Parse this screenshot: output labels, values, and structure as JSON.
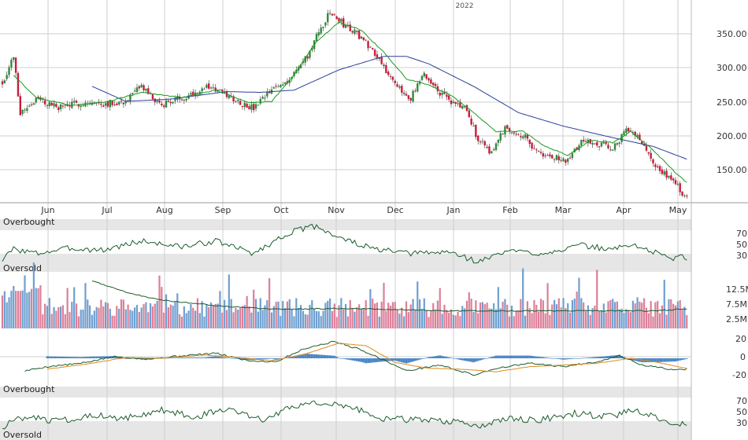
{
  "chart_data": [
    {
      "type": "candlestick",
      "panel": "price",
      "year_label": "2022",
      "months": [
        "Jun",
        "Jul",
        "Aug",
        "Sep",
        "Oct",
        "Nov",
        "Dec",
        "Jan",
        "Feb",
        "Mar",
        "Apr",
        "May"
      ],
      "yticks": [
        "350.00",
        "300.00",
        "250.00",
        "200.00",
        "150.00"
      ],
      "ylim": [
        105,
        375
      ],
      "close_keypoints": [
        [
          0,
          265
        ],
        [
          5,
          300
        ],
        [
          8,
          225
        ],
        [
          15,
          243
        ],
        [
          25,
          232
        ],
        [
          35,
          238
        ],
        [
          45,
          237
        ],
        [
          55,
          240
        ],
        [
          62,
          260
        ],
        [
          70,
          235
        ],
        [
          80,
          245
        ],
        [
          92,
          260
        ],
        [
          100,
          248
        ],
        [
          112,
          230
        ],
        [
          120,
          255
        ],
        [
          128,
          270
        ],
        [
          136,
          300
        ],
        [
          142,
          338
        ],
        [
          146,
          358
        ],
        [
          152,
          343
        ],
        [
          160,
          325
        ],
        [
          168,
          298
        ],
        [
          175,
          260
        ],
        [
          182,
          245
        ],
        [
          188,
          275
        ],
        [
          194,
          255
        ],
        [
          200,
          238
        ],
        [
          206,
          232
        ],
        [
          212,
          190
        ],
        [
          218,
          172
        ],
        [
          224,
          205
        ],
        [
          232,
          195
        ],
        [
          240,
          168
        ],
        [
          246,
          165
        ],
        [
          252,
          160
        ],
        [
          258,
          188
        ],
        [
          264,
          185
        ],
        [
          272,
          178
        ],
        [
          278,
          200
        ],
        [
          283,
          198
        ],
        [
          290,
          157
        ],
        [
          296,
          140
        ],
        [
          300,
          130
        ],
        [
          305,
          110
        ]
      ],
      "sma_short_keypoints": [
        [
          5,
          275
        ],
        [
          15,
          245
        ],
        [
          30,
          235
        ],
        [
          45,
          238
        ],
        [
          62,
          252
        ],
        [
          80,
          245
        ],
        [
          95,
          255
        ],
        [
          110,
          238
        ],
        [
          120,
          240
        ],
        [
          130,
          275
        ],
        [
          140,
          320
        ],
        [
          150,
          345
        ],
        [
          160,
          335
        ],
        [
          170,
          305
        ],
        [
          180,
          270
        ],
        [
          190,
          262
        ],
        [
          200,
          248
        ],
        [
          210,
          225
        ],
        [
          220,
          200
        ],
        [
          232,
          200
        ],
        [
          242,
          180
        ],
        [
          252,
          168
        ],
        [
          262,
          188
        ],
        [
          272,
          185
        ],
        [
          280,
          200
        ],
        [
          290,
          175
        ],
        [
          300,
          145
        ],
        [
          305,
          132
        ]
      ],
      "sma_long_keypoints": [
        [
          40,
          260
        ],
        [
          55,
          240
        ],
        [
          75,
          243
        ],
        [
          100,
          253
        ],
        [
          115,
          252
        ],
        [
          130,
          255
        ],
        [
          150,
          282
        ],
        [
          170,
          300
        ],
        [
          180,
          300
        ],
        [
          190,
          290
        ],
        [
          210,
          260
        ],
        [
          230,
          225
        ],
        [
          250,
          207
        ],
        [
          270,
          193
        ],
        [
          290,
          180
        ],
        [
          305,
          163
        ]
      ]
    },
    {
      "type": "line",
      "panel": "rsi",
      "label_top": "Overbought",
      "label_bottom": "Oversold",
      "yticks": [
        "70",
        "50",
        "30"
      ],
      "bands": [
        70,
        30
      ],
      "ylim": [
        10,
        90
      ],
      "keypoints": [
        [
          0,
          28
        ],
        [
          5,
          45
        ],
        [
          15,
          38
        ],
        [
          30,
          46
        ],
        [
          45,
          43
        ],
        [
          62,
          57
        ],
        [
          80,
          48
        ],
        [
          95,
          57
        ],
        [
          112,
          38
        ],
        [
          128,
          70
        ],
        [
          140,
          80
        ],
        [
          150,
          62
        ],
        [
          165,
          45
        ],
        [
          180,
          38
        ],
        [
          200,
          40
        ],
        [
          212,
          25
        ],
        [
          225,
          42
        ],
        [
          240,
          38
        ],
        [
          258,
          50
        ],
        [
          272,
          44
        ],
        [
          280,
          52
        ],
        [
          292,
          38
        ],
        [
          300,
          30
        ],
        [
          303,
          35
        ],
        [
          305,
          30
        ]
      ]
    },
    {
      "type": "bar",
      "panel": "volume",
      "yticks": [
        "12.5M",
        "7.5M",
        "2.5M"
      ],
      "ylim": [
        0,
        14
      ],
      "avg_keypoints": [
        [
          40,
          12.5
        ],
        [
          55,
          9.5
        ],
        [
          70,
          7.5
        ],
        [
          95,
          6
        ],
        [
          120,
          5
        ],
        [
          150,
          5.2
        ],
        [
          175,
          5.0
        ],
        [
          200,
          4.6
        ],
        [
          230,
          4.6
        ],
        [
          260,
          4.6
        ],
        [
          290,
          4.6
        ],
        [
          305,
          5.1
        ]
      ]
    },
    {
      "type": "line",
      "panel": "macd",
      "yticks": [
        "20",
        "0",
        "-20"
      ],
      "ylim": [
        -30,
        30
      ],
      "macd_keypoints": [
        [
          10,
          -15
        ],
        [
          20,
          -10
        ],
        [
          35,
          -6
        ],
        [
          50,
          2
        ],
        [
          65,
          -1
        ],
        [
          80,
          3
        ],
        [
          95,
          6
        ],
        [
          110,
          -3
        ],
        [
          122,
          -4
        ],
        [
          135,
          12
        ],
        [
          148,
          20
        ],
        [
          160,
          10
        ],
        [
          170,
          -2
        ],
        [
          180,
          -15
        ],
        [
          195,
          -8
        ],
        [
          210,
          -20
        ],
        [
          220,
          -12
        ],
        [
          235,
          -6
        ],
        [
          250,
          -10
        ],
        [
          265,
          -4
        ],
        [
          275,
          3
        ],
        [
          285,
          -8
        ],
        [
          300,
          -14
        ],
        [
          305,
          -13
        ]
      ],
      "signal_keypoints": [
        [
          20,
          -13
        ],
        [
          40,
          -6
        ],
        [
          55,
          1
        ],
        [
          70,
          0
        ],
        [
          90,
          4
        ],
        [
          105,
          1
        ],
        [
          120,
          -3
        ],
        [
          135,
          5
        ],
        [
          150,
          18
        ],
        [
          162,
          15
        ],
        [
          175,
          -5
        ],
        [
          190,
          -12
        ],
        [
          205,
          -13
        ],
        [
          220,
          -16
        ],
        [
          235,
          -10
        ],
        [
          250,
          -8
        ],
        [
          265,
          -6
        ],
        [
          280,
          0
        ],
        [
          292,
          -5
        ],
        [
          305,
          -12
        ]
      ]
    },
    {
      "type": "line",
      "panel": "stochastic",
      "label_top": "Overbought",
      "label_bottom": "Oversold",
      "yticks": [
        "70",
        "50",
        "30"
      ],
      "bands": [
        70,
        30
      ],
      "ylim": [
        10,
        90
      ],
      "keypoints": [
        [
          0,
          30
        ],
        [
          10,
          45
        ],
        [
          25,
          38
        ],
        [
          40,
          48
        ],
        [
          55,
          42
        ],
        [
          70,
          55
        ],
        [
          85,
          45
        ],
        [
          100,
          55
        ],
        [
          115,
          40
        ],
        [
          130,
          62
        ],
        [
          145,
          65
        ],
        [
          155,
          60
        ],
        [
          170,
          42
        ],
        [
          185,
          40
        ],
        [
          200,
          38
        ],
        [
          212,
          28
        ],
        [
          225,
          42
        ],
        [
          240,
          40
        ],
        [
          255,
          50
        ],
        [
          270,
          45
        ],
        [
          283,
          55
        ],
        [
          295,
          38
        ],
        [
          305,
          32
        ]
      ]
    }
  ],
  "colors": {
    "up": "#2e8b3a",
    "down": "#cc1a3c",
    "sma_short": "#1a9a1a",
    "sma_long": "#2a3f9a",
    "indicator": "#1a5c2a",
    "vol_up": "#6f9fd0",
    "vol_down": "#dc7f98",
    "macd_hist": "#4a86c5",
    "signal": "#e08a1e",
    "band": "#e6e6e6",
    "grid": "#cfcfcf"
  }
}
